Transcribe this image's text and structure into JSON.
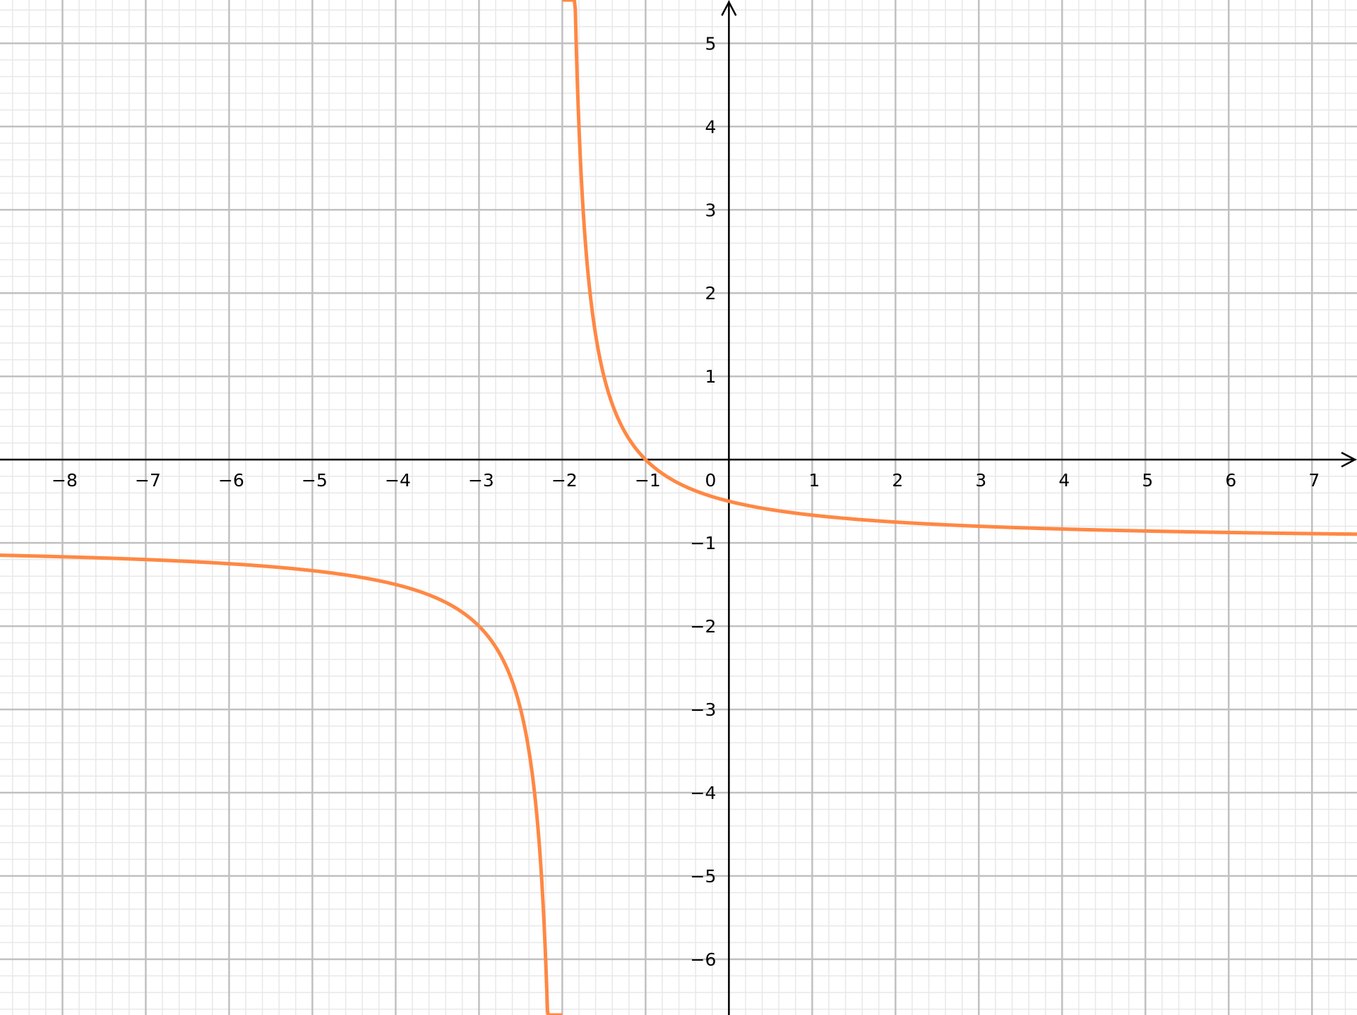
{
  "chart_data": {
    "type": "line",
    "title": "",
    "xlabel": "",
    "ylabel": "",
    "xlim": [
      -8.75,
      7.54
    ],
    "ylim": [
      -6.67,
      5.52
    ],
    "grid": true,
    "minor_grid_per_unit": 5,
    "x_ticks": [
      "−8",
      "−7",
      "−6",
      "−5",
      "−4",
      "−3",
      "−2",
      "−1",
      "1",
      "2",
      "3",
      "4",
      "5",
      "6",
      "7"
    ],
    "x_tick_values": [
      -8,
      -7,
      -6,
      -5,
      -4,
      -3,
      -2,
      -1,
      1,
      2,
      3,
      4,
      5,
      6,
      7
    ],
    "y_ticks": [
      "5",
      "4",
      "3",
      "2",
      "1",
      "−1",
      "−2",
      "−3",
      "−4",
      "−5",
      "−6"
    ],
    "y_tick_values": [
      5,
      4,
      3,
      2,
      1,
      -1,
      -2,
      -3,
      -4,
      -5,
      -6
    ],
    "origin_label": "0",
    "series": [
      {
        "function": "-(x+1)/(x+2)",
        "vertical_asymptote": -2,
        "horizontal_asymptote": -1,
        "color": "#ff8844",
        "sample_points": [
          [
            -8,
            -1.1667
          ],
          [
            -5,
            -1.3333
          ],
          [
            -4,
            -1.5
          ],
          [
            -3,
            -2
          ],
          [
            -2.5,
            -3
          ],
          [
            -1.5,
            1
          ],
          [
            -1,
            0
          ],
          [
            0,
            -0.5
          ],
          [
            1,
            -0.6667
          ],
          [
            3,
            -0.8
          ],
          [
            7,
            -0.8889
          ]
        ]
      }
    ],
    "colors": {
      "curve": "#ff8844",
      "axis": "#000000",
      "major_grid": "#c0c0c0",
      "minor_grid": "#e8e8e8"
    }
  }
}
